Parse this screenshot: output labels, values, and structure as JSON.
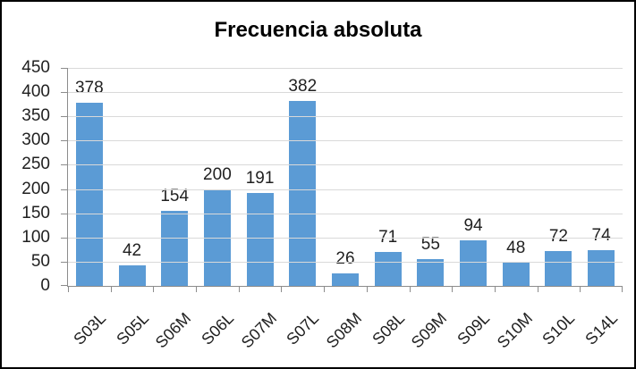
{
  "chart_data": {
    "type": "bar",
    "title": "Frecuencia absoluta",
    "categories": [
      "S03L",
      "S05L",
      "S06M",
      "S06L",
      "S07M",
      "S07L",
      "S08M",
      "S08L",
      "S09M",
      "S09L",
      "S10M",
      "S10L",
      "S14L"
    ],
    "values": [
      378,
      42,
      154,
      200,
      191,
      382,
      26,
      71,
      55,
      94,
      48,
      72,
      74
    ],
    "xlabel": "",
    "ylabel": "",
    "ylim": [
      0,
      450
    ],
    "ytick_step": 50,
    "grid": "horizontal",
    "legend": "none",
    "data_labels": "outside-end",
    "bar_color": "#5B9BD5",
    "gridline_color": "#D9D9D9",
    "axis_color": "#8C8C8C",
    "label_color": "#1f1f1f",
    "title_color": "#000000",
    "background_color": "#FFFFFF",
    "frame_border_color": "#000000"
  }
}
